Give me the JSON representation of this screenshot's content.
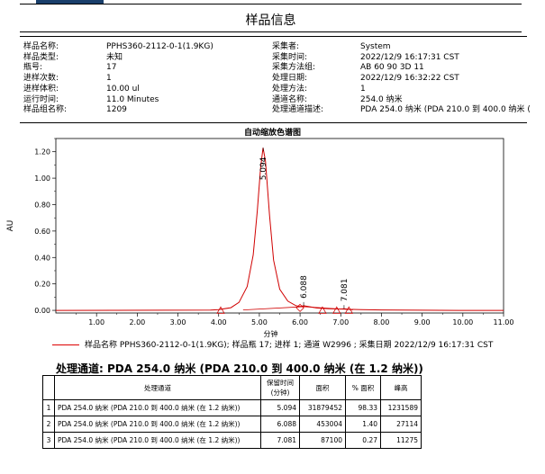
{
  "report": {
    "title": "样品信息"
  },
  "sample_info": {
    "left": [
      {
        "label": "样品名称:",
        "value": "PPHS360-2112-0-1(1.9KG)"
      },
      {
        "label": "样品类型:",
        "value": "未知"
      },
      {
        "label": "瓶号:",
        "value": "17"
      },
      {
        "label": "进样次数:",
        "value": "1"
      },
      {
        "label": "进样体积:",
        "value": "10.00 ul"
      },
      {
        "label": "运行时间:",
        "value": "11.0 Minutes"
      },
      {
        "label": "样品组名称:",
        "value": "1209"
      }
    ],
    "right": [
      {
        "label": "采集者:",
        "value": "System"
      },
      {
        "label": "采集时间:",
        "value": "2022/12/9 16:17:31 CST"
      },
      {
        "label": "采集方法组:",
        "value": "AB 60 90 3D 11"
      },
      {
        "label": "处理日期:",
        "value": "2022/12/9 16:32:22 CST"
      },
      {
        "label": "处理方法:",
        "value": "1"
      },
      {
        "label": "通道名称:",
        "value": "254.0 纳米"
      },
      {
        "label": "处理通道描述:",
        "value": "PDA 254.0 纳米 (PDA 210.0 到 400.0 纳米 ("
      }
    ]
  },
  "chart_data": {
    "type": "line",
    "title": "自动缩放色谱图",
    "xlabel": "分钟",
    "ylabel": "AU",
    "xlim": [
      0,
      11
    ],
    "ylim": [
      -0.02,
      1.3
    ],
    "x_ticks": [
      "1.00",
      "2.00",
      "3.00",
      "4.00",
      "5.00",
      "6.00",
      "7.00",
      "8.00",
      "9.00",
      "10.00",
      "11.00"
    ],
    "y_ticks": [
      "0.00",
      "0.20",
      "0.40",
      "0.60",
      "0.80",
      "1.00",
      "1.20"
    ],
    "series": [
      {
        "name": "样品名称 PPHS360-2112-0-1(1.9KG); 样品瓶 17; 进样 1; 通道 W2996 ; 采集日期 2022/12/9 16:17:31 CST",
        "color": "#d00000",
        "x": [
          0,
          3.8,
          4.0,
          4.3,
          4.5,
          4.7,
          4.85,
          4.95,
          5.03,
          5.09,
          5.15,
          5.25,
          5.35,
          5.5,
          5.7,
          5.9,
          6.0,
          6.088,
          6.2,
          6.4,
          6.7,
          7.0,
          7.081,
          7.2,
          7.5,
          8.0,
          9.0,
          10.0,
          11.0
        ],
        "y": [
          0,
          0.002,
          0.005,
          0.02,
          0.06,
          0.18,
          0.42,
          0.75,
          1.08,
          1.23,
          1.13,
          0.72,
          0.38,
          0.16,
          0.07,
          0.035,
          0.028,
          0.035,
          0.03,
          0.018,
          0.012,
          0.01,
          0.012,
          0.008,
          0.005,
          0.003,
          0.001,
          0.0,
          0.0
        ]
      }
    ],
    "peak_labels": [
      {
        "x": 5.094,
        "y": 1.23,
        "label": "5.094"
      },
      {
        "x": 6.088,
        "y": 0.035,
        "label": "6.088"
      },
      {
        "x": 7.081,
        "y": 0.012,
        "label": "7.081"
      }
    ],
    "markers": [
      {
        "x": 4.05,
        "type": "triangle"
      },
      {
        "x": 6.0,
        "type": "diamond"
      },
      {
        "x": 6.55,
        "type": "triangle"
      },
      {
        "x": 6.9,
        "type": "triangle"
      },
      {
        "x": 7.2,
        "type": "triangle"
      }
    ],
    "baseline_marker_y": -0.002
  },
  "peak_table": {
    "title": "处理通道: PDA 254.0 纳米 (PDA 210.0 到 400.0 纳米 (在 1.2 纳米))",
    "headers": [
      "",
      "处理通道",
      "保留时间\n(分钟)",
      "面积",
      "% 面积",
      "峰高"
    ],
    "rows": [
      [
        "1",
        "PDA 254.0 纳米 (PDA 210.0 到 400.0 纳米 (在 1.2 纳米))",
        "5.094",
        "31879452",
        "98.33",
        "1231589"
      ],
      [
        "2",
        "PDA 254.0 纳米 (PDA 210.0 到 400.0 纳米 (在 1.2 纳米))",
        "6.088",
        "453004",
        "1.40",
        "27114"
      ],
      [
        "3",
        "PDA 254.0 纳米 (PDA 210.0 到 400.0 纳米 (在 1.2 纳米))",
        "7.081",
        "87100",
        "0.27",
        "11275"
      ]
    ]
  }
}
